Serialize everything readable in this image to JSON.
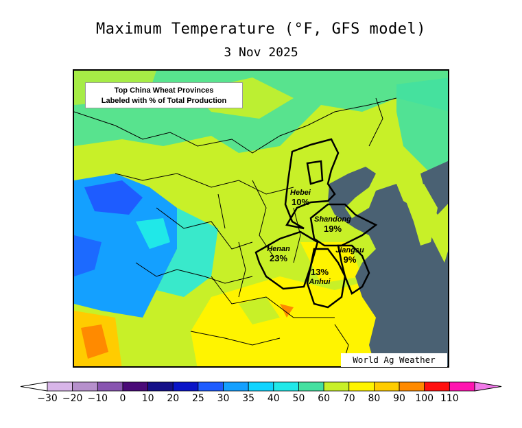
{
  "header": {
    "title": "Maximum Temperature (°F, GFS model)",
    "date": "3 Nov 2025"
  },
  "map": {
    "region": "China",
    "info_box": {
      "line1": "Top China Wheat Provinces",
      "line2": "Labeled with % of Total Production"
    },
    "credit": "World Ag Weather",
    "provinces": [
      {
        "name": "Hebei",
        "percent": "10%"
      },
      {
        "name": "Shandong",
        "percent": "19%"
      },
      {
        "name": "Henan",
        "percent": "23%"
      },
      {
        "name": "Jiangsu",
        "percent": "9%"
      },
      {
        "name": "Anhui",
        "percent": "13%"
      }
    ]
  },
  "colorbar": {
    "ticks": [
      "-30",
      "-20",
      "-10",
      "0",
      "10",
      "20",
      "25",
      "30",
      "35",
      "40",
      "50",
      "60",
      "70",
      "80",
      "90",
      "100",
      "110"
    ],
    "colors": [
      "#d8b5e8",
      "#b690cc",
      "#8855b0",
      "#4a0a78",
      "#151088",
      "#0a14c8",
      "#1e5cff",
      "#14a0ff",
      "#10d4ff",
      "#20e8e8",
      "#44e0a0",
      "#c8f028",
      "#fff400",
      "#ffcc00",
      "#ff8a00",
      "#ff1010",
      "#ff14b0"
    ],
    "under_color": "#ffffff",
    "over_color": "#f07ae8"
  }
}
